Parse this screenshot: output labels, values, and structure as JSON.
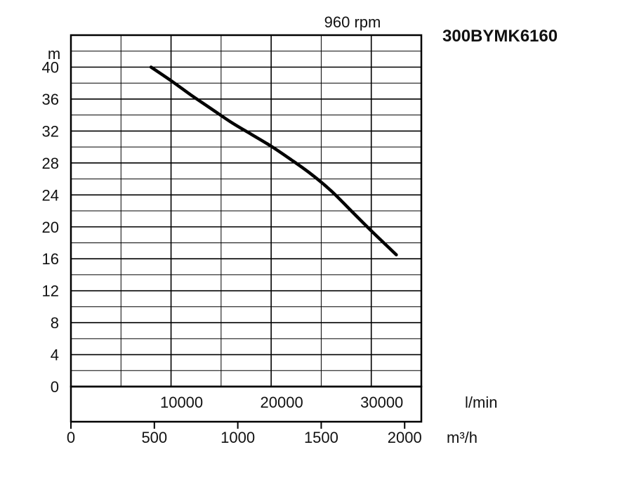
{
  "chart_data": {
    "type": "line",
    "title": "960 rpm",
    "model": "300BYMK6160",
    "ylabel": "m",
    "ylim": [
      0,
      40
    ],
    "yticks": [
      0,
      4,
      8,
      12,
      16,
      20,
      24,
      28,
      32,
      36,
      40
    ],
    "x_primary": {
      "unit": "l/min",
      "ticks": [
        10000,
        20000,
        30000
      ],
      "range": [
        0,
        35000
      ]
    },
    "x_secondary": {
      "unit": "m³/h",
      "ticks": [
        0,
        500,
        1000,
        1500,
        2000
      ]
    },
    "series": [
      {
        "x": [
          8000,
          10000,
          12000,
          14000,
          16000,
          18000,
          20000,
          22000,
          24000,
          26000,
          28000,
          30000,
          32500
        ],
        "y": [
          40,
          38.3,
          36.5,
          34.8,
          33.1,
          31.6,
          30.1,
          28.4,
          26.6,
          24.5,
          22.0,
          19.5,
          16.5
        ]
      }
    ],
    "grid": true,
    "line_color": "#000000"
  }
}
